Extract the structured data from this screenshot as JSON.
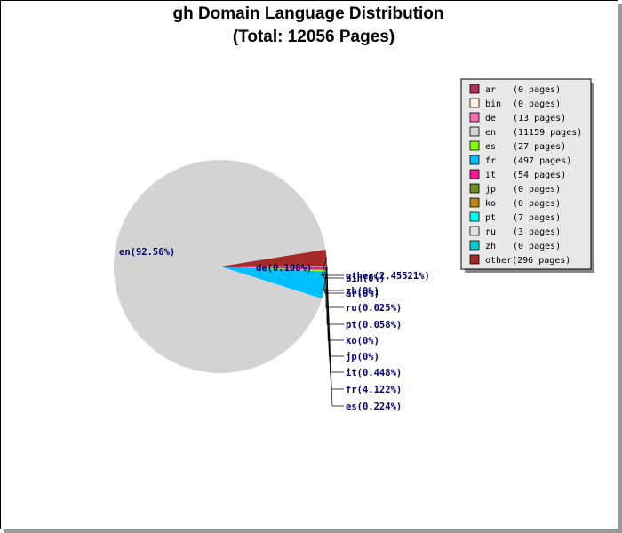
{
  "chart_data": {
    "type": "pie",
    "title": "gh Domain Language Distribution",
    "subtitle": "(Total: 12056 Pages)",
    "total_pages": 12056,
    "slices": [
      {
        "code": "ar",
        "pages": 0,
        "percent_label": "ar(0%)",
        "legend": "(0 pages)",
        "color": "#b03060"
      },
      {
        "code": "bin",
        "pages": 0,
        "percent_label": "bin(0%)",
        "legend": "(0 pages)",
        "color": "#fff0e0"
      },
      {
        "code": "de",
        "pages": 13,
        "percent_label": "de(0.108%)",
        "legend": "(13 pages)",
        "color": "#ff69b4"
      },
      {
        "code": "en",
        "pages": 11159,
        "percent_label": "en(92.56%)",
        "legend": "(11159 pages)",
        "color": "#d3d3d3"
      },
      {
        "code": "es",
        "pages": 27,
        "percent_label": "es(0.224%)",
        "legend": "(27 pages)",
        "color": "#7fff00"
      },
      {
        "code": "fr",
        "pages": 497,
        "percent_label": "fr(4.122%)",
        "legend": "(497 pages)",
        "color": "#00bfff"
      },
      {
        "code": "it",
        "pages": 54,
        "percent_label": "it(0.448%)",
        "legend": "(54 pages)",
        "color": "#ff1493"
      },
      {
        "code": "jp",
        "pages": 0,
        "percent_label": "jp(0%)",
        "legend": "(0 pages)",
        "color": "#6b8e23"
      },
      {
        "code": "ko",
        "pages": 0,
        "percent_label": "ko(0%)",
        "legend": "(0 pages)",
        "color": "#b8860b"
      },
      {
        "code": "pt",
        "pages": 7,
        "percent_label": "pt(0.058%)",
        "legend": "(7 pages)",
        "color": "#00ffff"
      },
      {
        "code": "ru",
        "pages": 3,
        "percent_label": "ru(0.025%)",
        "legend": "(3 pages)",
        "color": "#e0e0e0"
      },
      {
        "code": "zh",
        "pages": 0,
        "percent_label": "zh(0%)",
        "legend": "(0 pages)",
        "color": "#00ced1"
      },
      {
        "code": "other",
        "pages": 296,
        "percent_label": "other(2.45521%)",
        "legend": "(296 pages)",
        "color": "#a52a2a"
      }
    ],
    "legend_position": "right"
  }
}
